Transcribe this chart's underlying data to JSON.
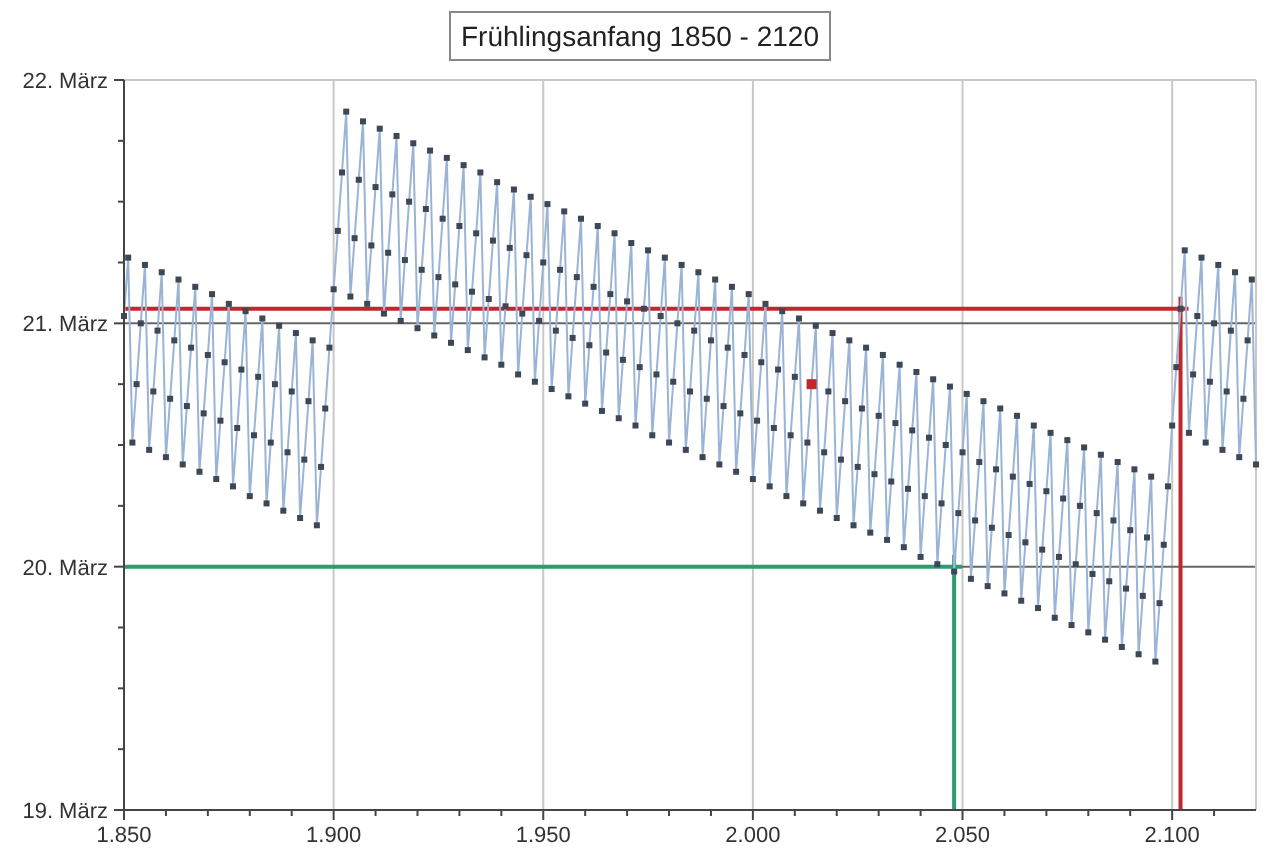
{
  "chart_data": {
    "type": "line",
    "title": "Frühlingsanfang 1850 - 2120",
    "xlim": [
      1850,
      2120
    ],
    "xticks": [
      {
        "value": 1850,
        "label": "1.850"
      },
      {
        "value": 1860,
        "label": null
      },
      {
        "value": 1870,
        "label": null
      },
      {
        "value": 1880,
        "label": null
      },
      {
        "value": 1890,
        "label": null
      },
      {
        "value": 1900,
        "label": "1.900"
      },
      {
        "value": 1910,
        "label": null
      },
      {
        "value": 1920,
        "label": null
      },
      {
        "value": 1930,
        "label": null
      },
      {
        "value": 1940,
        "label": null
      },
      {
        "value": 1950,
        "label": "1.950"
      },
      {
        "value": 1960,
        "label": null
      },
      {
        "value": 1970,
        "label": null
      },
      {
        "value": 1980,
        "label": null
      },
      {
        "value": 1990,
        "label": null
      },
      {
        "value": 2000,
        "label": "2.000"
      },
      {
        "value": 2010,
        "label": null
      },
      {
        "value": 2020,
        "label": null
      },
      {
        "value": 2030,
        "label": null
      },
      {
        "value": 2040,
        "label": null
      },
      {
        "value": 2050,
        "label": "2.050"
      },
      {
        "value": 2060,
        "label": null
      },
      {
        "value": 2070,
        "label": null
      },
      {
        "value": 2080,
        "label": null
      },
      {
        "value": 2090,
        "label": null
      },
      {
        "value": 2100,
        "label": "2.100"
      },
      {
        "value": 2110,
        "label": null
      }
    ],
    "ylim": [
      19,
      22
    ],
    "yticks": [
      {
        "value": 19,
        "label": "19. März"
      },
      {
        "value": 19.25,
        "label": null
      },
      {
        "value": 19.5,
        "label": null
      },
      {
        "value": 19.75,
        "label": null
      },
      {
        "value": 20,
        "label": "20. März"
      },
      {
        "value": 20.25,
        "label": null
      },
      {
        "value": 20.5,
        "label": null
      },
      {
        "value": 20.75,
        "label": null
      },
      {
        "value": 21,
        "label": "21. März"
      },
      {
        "value": 21.25,
        "label": null
      },
      {
        "value": 21.5,
        "label": null
      },
      {
        "value": 21.75,
        "label": null
      },
      {
        "value": 22,
        "label": "22. März"
      }
    ],
    "grid": true,
    "marker": "square",
    "ref_lines": [
      {
        "axis": "y",
        "value": 21.06,
        "color": "#c0282d"
      },
      {
        "axis": "x",
        "value": 2102,
        "color": "#c0282d"
      },
      {
        "axis": "y",
        "value": 20,
        "color": "#2e9a6e"
      },
      {
        "axis": "x",
        "value": 2048,
        "color": "#2e9a6e"
      }
    ],
    "series": [
      {
        "color": "#9ab4d6",
        "x": [
          1850,
          1851,
          1852,
          1853,
          1854,
          1855,
          1856,
          1857,
          1858,
          1859,
          1860,
          1861,
          1862,
          1863,
          1864,
          1865,
          1866,
          1867,
          1868,
          1869,
          1870,
          1871,
          1872,
          1873,
          1874,
          1875,
          1876,
          1877,
          1878,
          1879,
          1880,
          1881,
          1882,
          1883,
          1884,
          1885,
          1886,
          1887,
          1888,
          1889,
          1890,
          1891,
          1892,
          1893,
          1894,
          1895,
          1896,
          1897,
          1898,
          1899,
          1900,
          1901,
          1902,
          1903,
          1904,
          1905,
          1906,
          1907,
          1908,
          1909,
          1910,
          1911,
          1912,
          1913,
          1914,
          1915,
          1916,
          1917,
          1918,
          1919,
          1920,
          1921,
          1922,
          1923,
          1924,
          1925,
          1926,
          1927,
          1928,
          1929,
          1930,
          1931,
          1932,
          1933,
          1934,
          1935,
          1936,
          1937,
          1938,
          1939,
          1940,
          1941,
          1942,
          1943,
          1944,
          1945,
          1946,
          1947,
          1948,
          1949,
          1950,
          1951,
          1952,
          1953,
          1954,
          1955,
          1956,
          1957,
          1958,
          1959,
          1960,
          1961,
          1962,
          1963,
          1964,
          1965,
          1966,
          1967,
          1968,
          1969,
          1970,
          1971,
          1972,
          1973,
          1974,
          1975,
          1976,
          1977,
          1978,
          1979,
          1980,
          1981,
          1982,
          1983,
          1984,
          1985,
          1986,
          1987,
          1988,
          1989,
          1990,
          1991,
          1992,
          1993,
          1994,
          1995,
          1996,
          1997,
          1998,
          1999,
          2000,
          2001,
          2002,
          2003,
          2004,
          2005,
          2006,
          2007,
          2008,
          2009,
          2010,
          2011,
          2012,
          2013,
          2014,
          2015,
          2016,
          2017,
          2018,
          2019,
          2020,
          2021,
          2022,
          2023,
          2024,
          2025,
          2026,
          2027,
          2028,
          2029,
          2030,
          2031,
          2032,
          2033,
          2034,
          2035,
          2036,
          2037,
          2038,
          2039,
          2040,
          2041,
          2042,
          2043,
          2044,
          2045,
          2046,
          2047,
          2048,
          2049,
          2050,
          2051,
          2052,
          2053,
          2054,
          2055,
          2056,
          2057,
          2058,
          2059,
          2060,
          2061,
          2062,
          2063,
          2064,
          2065,
          2066,
          2067,
          2068,
          2069,
          2070,
          2071,
          2072,
          2073,
          2074,
          2075,
          2076,
          2077,
          2078,
          2079,
          2080,
          2081,
          2082,
          2083,
          2084,
          2085,
          2086,
          2087,
          2088,
          2089,
          2090,
          2091,
          2092,
          2093,
          2094,
          2095,
          2096,
          2097,
          2098,
          2099,
          2100,
          2101,
          2102,
          2103,
          2104,
          2105,
          2106,
          2107,
          2108,
          2109,
          2110,
          2111,
          2112,
          2113,
          2114,
          2115,
          2116,
          2117,
          2118,
          2119,
          2120
        ],
        "values": [
          21.03,
          21.27,
          20.51,
          20.75,
          21.0,
          21.24,
          20.48,
          20.72,
          20.97,
          21.21,
          20.45,
          20.69,
          20.93,
          21.18,
          20.42,
          20.66,
          20.9,
          21.15,
          20.39,
          20.63,
          20.87,
          21.12,
          20.36,
          20.6,
          20.84,
          21.08,
          20.33,
          20.57,
          20.81,
          21.05,
          20.29,
          20.54,
          20.78,
          21.02,
          20.26,
          20.51,
          20.75,
          20.99,
          20.23,
          20.47,
          20.72,
          20.96,
          20.2,
          20.44,
          20.68,
          20.93,
          20.17,
          20.41,
          20.65,
          20.9,
          21.14,
          21.38,
          21.62,
          21.87,
          21.11,
          21.35,
          21.59,
          21.83,
          21.08,
          21.32,
          21.56,
          21.8,
          21.04,
          21.29,
          21.53,
          21.77,
          21.01,
          21.26,
          21.5,
          21.74,
          20.98,
          21.22,
          21.47,
          21.71,
          20.95,
          21.19,
          21.43,
          21.68,
          20.92,
          21.16,
          21.4,
          21.65,
          20.89,
          21.13,
          21.37,
          21.62,
          20.86,
          21.1,
          21.34,
          21.58,
          20.83,
          21.07,
          21.31,
          21.55,
          20.79,
          21.04,
          21.28,
          21.52,
          20.76,
          21.01,
          21.25,
          21.49,
          20.73,
          20.97,
          21.22,
          21.46,
          20.7,
          20.94,
          21.19,
          21.43,
          20.67,
          20.91,
          21.15,
          21.4,
          20.64,
          20.88,
          21.12,
          21.37,
          20.61,
          20.85,
          21.09,
          21.33,
          20.58,
          20.82,
          21.06,
          21.3,
          20.54,
          20.79,
          21.03,
          21.27,
          20.51,
          20.76,
          21.0,
          21.24,
          20.48,
          20.72,
          20.97,
          21.21,
          20.45,
          20.69,
          20.93,
          21.18,
          20.42,
          20.66,
          20.9,
          21.15,
          20.39,
          20.63,
          20.87,
          21.12,
          20.36,
          20.6,
          20.84,
          21.08,
          20.33,
          20.57,
          20.81,
          21.05,
          20.29,
          20.54,
          20.78,
          21.02,
          20.26,
          20.51,
          20.75,
          20.99,
          20.23,
          20.47,
          20.72,
          20.96,
          20.2,
          20.44,
          20.68,
          20.93,
          20.17,
          20.41,
          20.65,
          20.9,
          20.14,
          20.38,
          20.62,
          20.87,
          20.11,
          20.35,
          20.59,
          20.83,
          20.08,
          20.32,
          20.56,
          20.8,
          20.04,
          20.29,
          20.53,
          20.77,
          20.01,
          20.26,
          20.5,
          20.74,
          19.98,
          20.22,
          20.47,
          20.71,
          19.95,
          20.19,
          20.43,
          20.68,
          19.92,
          20.16,
          20.4,
          20.65,
          19.89,
          20.13,
          20.37,
          20.62,
          19.86,
          20.1,
          20.34,
          20.58,
          19.83,
          20.07,
          20.31,
          20.55,
          19.79,
          20.04,
          20.28,
          20.52,
          19.76,
          20.01,
          20.25,
          20.49,
          19.73,
          19.97,
          20.22,
          20.46,
          19.7,
          19.94,
          20.19,
          20.43,
          19.67,
          19.91,
          20.15,
          20.4,
          19.64,
          19.88,
          20.12,
          20.37,
          19.61,
          19.85,
          20.09,
          20.33,
          20.58,
          20.82,
          21.06,
          21.3,
          20.55,
          20.79,
          21.03,
          21.27,
          20.51,
          20.76,
          21.0,
          21.24,
          20.48,
          20.72,
          20.97,
          21.21,
          20.45,
          20.69,
          20.93,
          21.18,
          20.42
        ]
      },
      {
        "type": "scatter",
        "color": "#c0282d",
        "x": [
          2014
        ],
        "values": [
          20.75
        ]
      }
    ]
  }
}
